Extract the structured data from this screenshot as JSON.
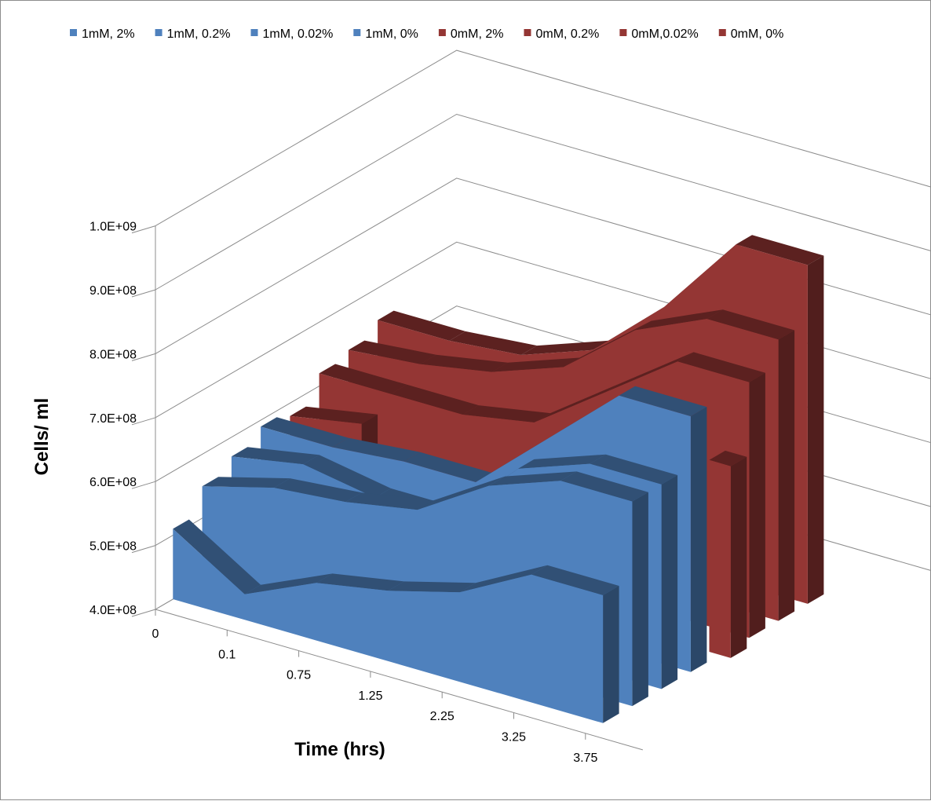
{
  "chart_data": {
    "type": "area",
    "subtype": "3d-area",
    "title": "",
    "xlabel": "Time (hrs)",
    "ylabel": "Cells/ ml",
    "categories": [
      "0",
      "0.1",
      "0.75",
      "1.25",
      "2.25",
      "3.25",
      "3.75"
    ],
    "y_ticks": [
      "4.0E+08",
      "5.0E+08",
      "6.0E+08",
      "7.0E+08",
      "8.0E+08",
      "9.0E+08",
      "1.0E+09"
    ],
    "ylim": [
      400000000,
      1000000000
    ],
    "legend_position": "top",
    "series": [
      {
        "name": "1mM, 2%",
        "color": "#4f81bd",
        "values": [
          510000000,
          440000000,
          490000000,
          510000000,
          540000000,
          600000000,
          600000000
        ]
      },
      {
        "name": "1mM, 0.2%",
        "color": "#4f81bd",
        "values": [
          550000000,
          580000000,
          590000000,
          610000000,
          680000000,
          720000000,
          720000000
        ]
      },
      {
        "name": "1mM, 0.02%",
        "color": "#4f81bd",
        "values": [
          570000000,
          590000000,
          570000000,
          570000000,
          680000000,
          720000000,
          720000000
        ]
      },
      {
        "name": "1mM, 0%",
        "color": "#4f81bd",
        "values": [
          590000000,
          590000000,
          600000000,
          600000000,
          700000000,
          800000000,
          800000000
        ]
      },
      {
        "name": "0mM, 2%",
        "color": "#943634",
        "values": [
          580000000,
          600000000,
          null,
          null,
          null,
          null,
          700000000
        ]
      },
      {
        "name": "0mM, 0.2%",
        "color": "#943634",
        "values": [
          620000000,
          620000000,
          620000000,
          640000000,
          720000000,
          800000000,
          800000000
        ]
      },
      {
        "name": "0mM,0.02%",
        "color": "#943634",
        "values": [
          630000000,
          640000000,
          660000000,
          700000000,
          790000000,
          840000000,
          840000000
        ]
      },
      {
        "name": "0mM, 0%",
        "color": "#943634",
        "values": [
          650000000,
          650000000,
          660000000,
          700000000,
          800000000,
          930000000,
          930000000
        ]
      }
    ]
  }
}
